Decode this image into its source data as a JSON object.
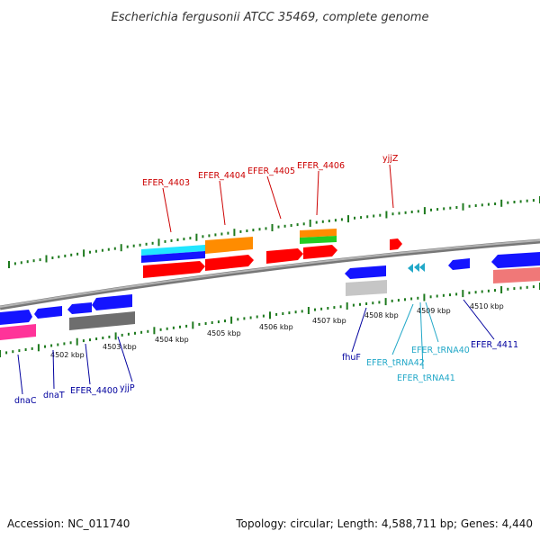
{
  "title": "Escherichia fergusonii ATCC 35469, complete genome",
  "footer": {
    "accession": "Accession: NC_011740",
    "topology": "Topology: circular; Length: 4,588,711 bp; Genes: 4,440"
  },
  "colors": {
    "backbone": "#8f8f8f",
    "tick": "#1e7a1e",
    "red_label": "#cc0000",
    "blue_label": "#00009e",
    "cyan_label": "#22a8c8",
    "gene_red": "#ff0000",
    "gene_blue": "#1414ff",
    "gene_orange": "#ff8c00",
    "gene_cyan": "#22e6ff",
    "gene_pink": "#ff3399",
    "gene_salmon": "#f07878",
    "gene_gray": "#8a8a8a",
    "gene_light_gray": "#c6c6c6",
    "gene_green": "#22cc22"
  },
  "kbp_labels": [
    "4502 kbp",
    "4503 kbp",
    "4504 kbp",
    "4505 kbp",
    "4506 kbp",
    "4507 kbp",
    "4508 kbp",
    "4509 kbp",
    "4510 kbp"
  ],
  "labels": {
    "top": [
      "EFER_4403",
      "EFER_4404",
      "EFER_4405",
      "EFER_4406",
      "yjjZ"
    ],
    "bottom_blue": [
      "dnaC",
      "dnaT",
      "EFER_4400",
      "yjjP",
      "fhuF",
      "EFER_4411"
    ],
    "bottom_cyan": [
      "EFER_tRNA40",
      "EFER_tRNA42",
      "EFER_tRNA41"
    ]
  }
}
